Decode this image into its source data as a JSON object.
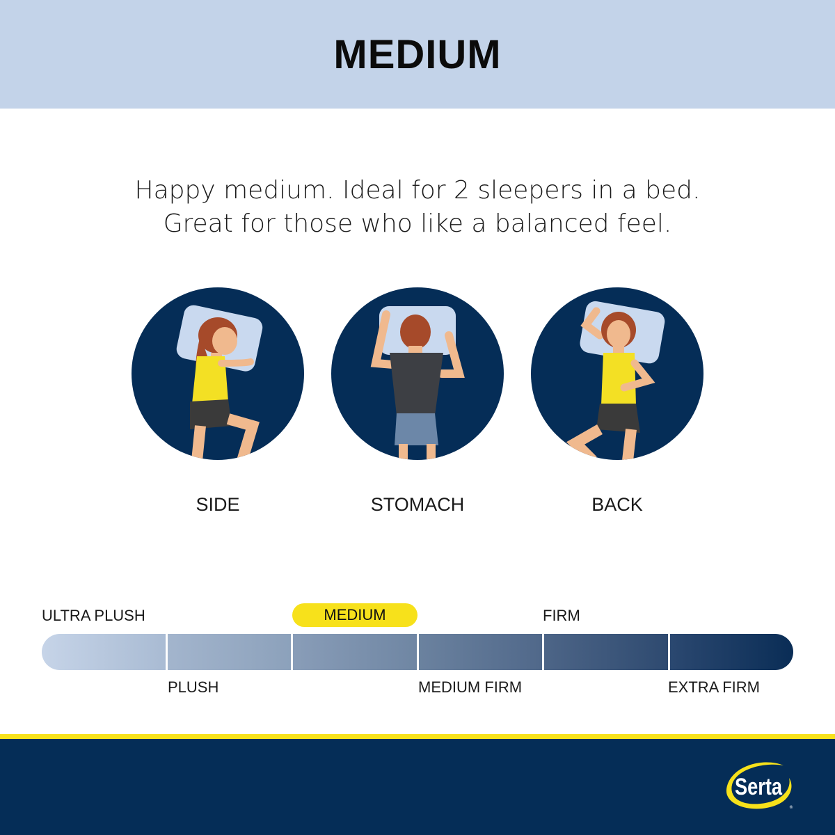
{
  "header": {
    "title": "MEDIUM"
  },
  "tagline": [
    "Happy medium. Ideal for 2 sleepers in a bed.",
    "Great for those who like a balanced feel."
  ],
  "positions": [
    {
      "label": "SIDE",
      "icon": "side-sleeper-illustration"
    },
    {
      "label": "STOMACH",
      "icon": "stomach-sleeper-illustration"
    },
    {
      "label": "BACK",
      "icon": "back-sleeper-illustration"
    }
  ],
  "firmness_scale": {
    "levels": [
      "ULTRA PLUSH",
      "PLUSH",
      "MEDIUM",
      "MEDIUM FIRM",
      "FIRM",
      "EXTRA FIRM"
    ],
    "selected": "MEDIUM",
    "colors": [
      [
        "#c6d4e8",
        "#a9bbd3"
      ],
      [
        "#a3b5cd",
        "#8ca1bb"
      ],
      [
        "#899db8",
        "#6f86a3"
      ],
      [
        "#6b829f",
        "#50688a"
      ],
      [
        "#4d6587",
        "#2e4a70"
      ],
      [
        "#2b4870",
        "#0a2d56"
      ]
    ]
  },
  "brand": {
    "logo": "Serta",
    "colors": {
      "navy": "#052d57",
      "yellow": "#f7e11b",
      "header": "#c3d3e9"
    }
  }
}
